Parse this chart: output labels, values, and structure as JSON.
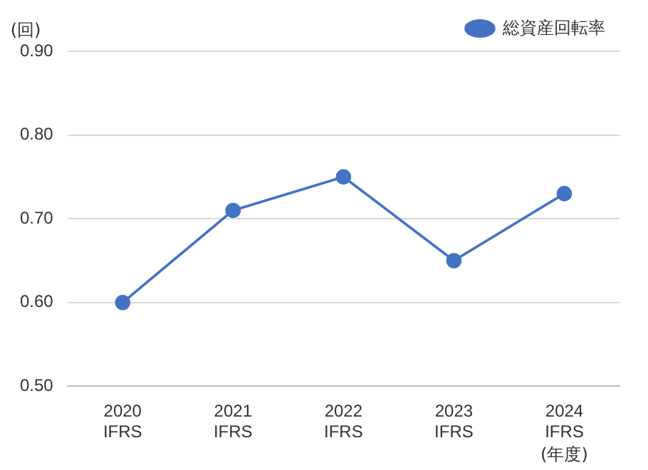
{
  "chart_data": {
    "type": "line",
    "ylabel": "(回)",
    "xlabel": "(年度)",
    "categories": [
      "2020\nIFRS",
      "2021\nIFRS",
      "2022\nIFRS",
      "2023\nIFRS",
      "2024\nIFRS"
    ],
    "series": [
      {
        "name": "総資産回転率",
        "color": "#4472c4",
        "values": [
          0.6,
          0.71,
          0.75,
          0.65,
          0.73
        ]
      }
    ],
    "ylim": [
      0.5,
      0.9
    ],
    "yticks": [
      {
        "value": 0.5,
        "label": "0.50"
      },
      {
        "value": 0.6,
        "label": "0.60"
      },
      {
        "value": 0.7,
        "label": "0.70"
      },
      {
        "value": 0.8,
        "label": "0.80"
      },
      {
        "value": 0.9,
        "label": "0.90"
      }
    ],
    "grid": "y",
    "legend": "top right",
    "marker": "circle",
    "line_style": "solid"
  }
}
